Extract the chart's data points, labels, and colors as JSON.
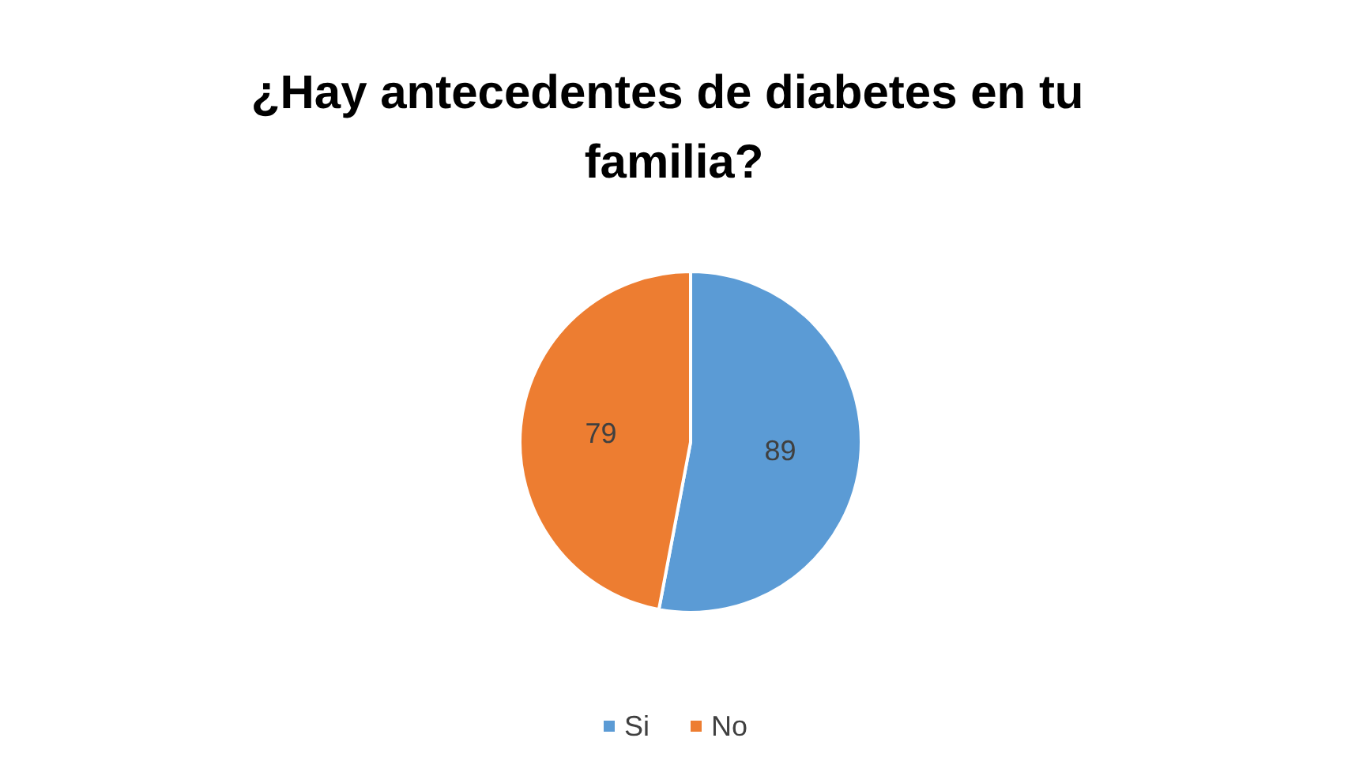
{
  "chart_data": {
    "type": "pie",
    "title": "¿Hay antecedentes de diabetes en tu familia?",
    "categories": [
      "Si",
      "No"
    ],
    "values": [
      89,
      79
    ],
    "colors": [
      "#5b9bd5",
      "#ed7d31"
    ],
    "data_labels": true,
    "legend": "bottom"
  }
}
